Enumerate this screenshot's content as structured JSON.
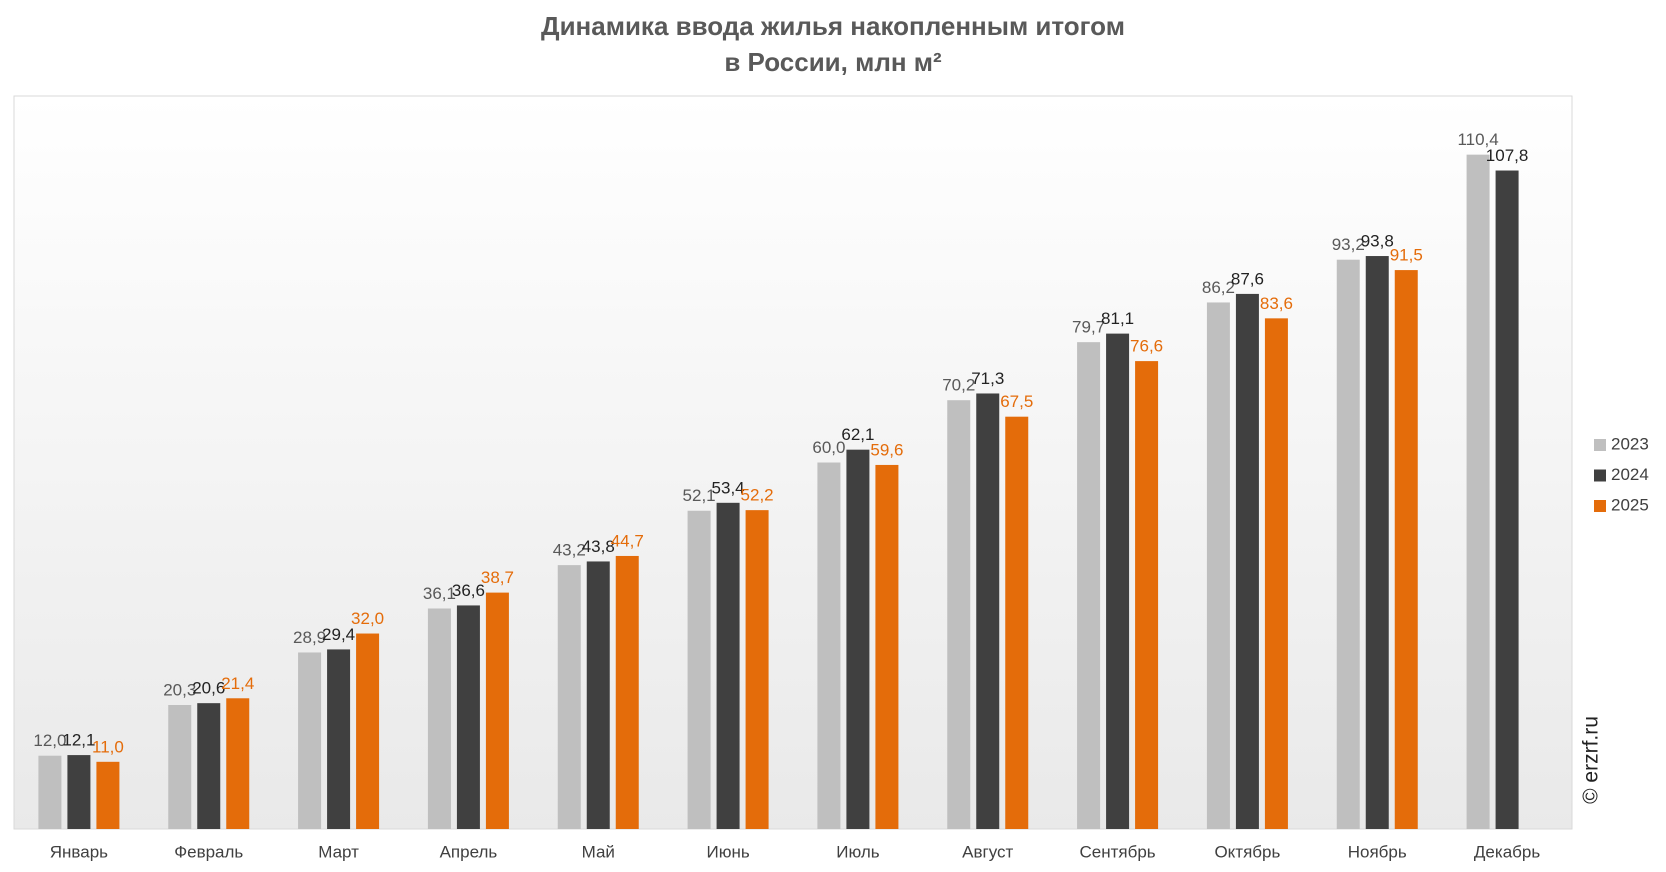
{
  "chart_data": {
    "type": "bar",
    "title": "Динамика ввода жилья накопленным итогом",
    "subtitle": "в России, млн м²",
    "categories": [
      "Январь",
      "Февраль",
      "Март",
      "Апрель",
      "Май",
      "Июнь",
      "Июль",
      "Август",
      "Сентябрь",
      "Октябрь",
      "Ноябрь",
      "Декабрь"
    ],
    "series": [
      {
        "name": "2023",
        "color": "#bfbfbf",
        "label_color": "#595959",
        "values": [
          12.0,
          20.3,
          28.9,
          36.1,
          43.2,
          52.1,
          60.0,
          70.2,
          79.7,
          86.2,
          93.2,
          110.4
        ],
        "value_labels": [
          "12,0",
          "20,3",
          "28,9",
          "36,1",
          "43,2",
          "52,1",
          "60,0",
          "70,2",
          "79,7",
          "86,2",
          "93,2",
          "110,4"
        ]
      },
      {
        "name": "2024",
        "color": "#404040",
        "label_color": "#222222",
        "values": [
          12.1,
          20.6,
          29.4,
          36.6,
          43.8,
          53.4,
          62.1,
          71.3,
          81.1,
          87.6,
          93.8,
          107.8
        ],
        "value_labels": [
          "12,1",
          "20,6",
          "29,4",
          "36,6",
          "43,8",
          "53,4",
          "62,1",
          "71,3",
          "81,1",
          "87,6",
          "93,8",
          "107,8"
        ]
      },
      {
        "name": "2025",
        "color": "#e46c0a",
        "label_color": "#e46c0a",
        "values": [
          11.0,
          21.4,
          32.0,
          38.7,
          44.7,
          52.2,
          59.6,
          67.5,
          76.6,
          83.6,
          91.5,
          null
        ],
        "value_labels": [
          "11,0",
          "21,4",
          "32,0",
          "38,7",
          "44,7",
          "52,2",
          "59,6",
          "67,5",
          "76,6",
          "83,6",
          "91,5",
          null
        ]
      }
    ],
    "ylim": [
      0,
      120
    ],
    "legend": "right",
    "watermark": "© erzrf.ru"
  }
}
